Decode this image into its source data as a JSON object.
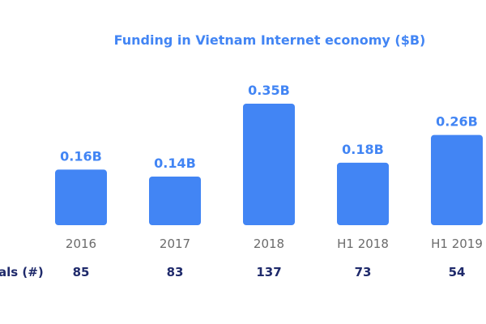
{
  "chart_data": {
    "type": "bar",
    "title": "Funding in Vietnam Internet economy ($B)",
    "categories": [
      "2016",
      "2017",
      "2018",
      "H1 2018",
      "H1 2019"
    ],
    "values": [
      0.16,
      0.14,
      0.35,
      0.18,
      0.26
    ],
    "data_labels": [
      "0.16B",
      "0.14B",
      "0.35B",
      "0.18B",
      "0.26B"
    ],
    "ylim": [
      0,
      0.35
    ],
    "grid": false,
    "xlabel": "",
    "ylabel": "",
    "deals": {
      "label": "als (#)",
      "values": [
        85,
        83,
        137,
        73,
        54
      ]
    }
  },
  "colors": {
    "bar": "#4285f4",
    "title": "#4285f4",
    "data_label": "#4285f4",
    "tick_label": "#6b6b6b",
    "deals_text": "#1f2a6b"
  }
}
